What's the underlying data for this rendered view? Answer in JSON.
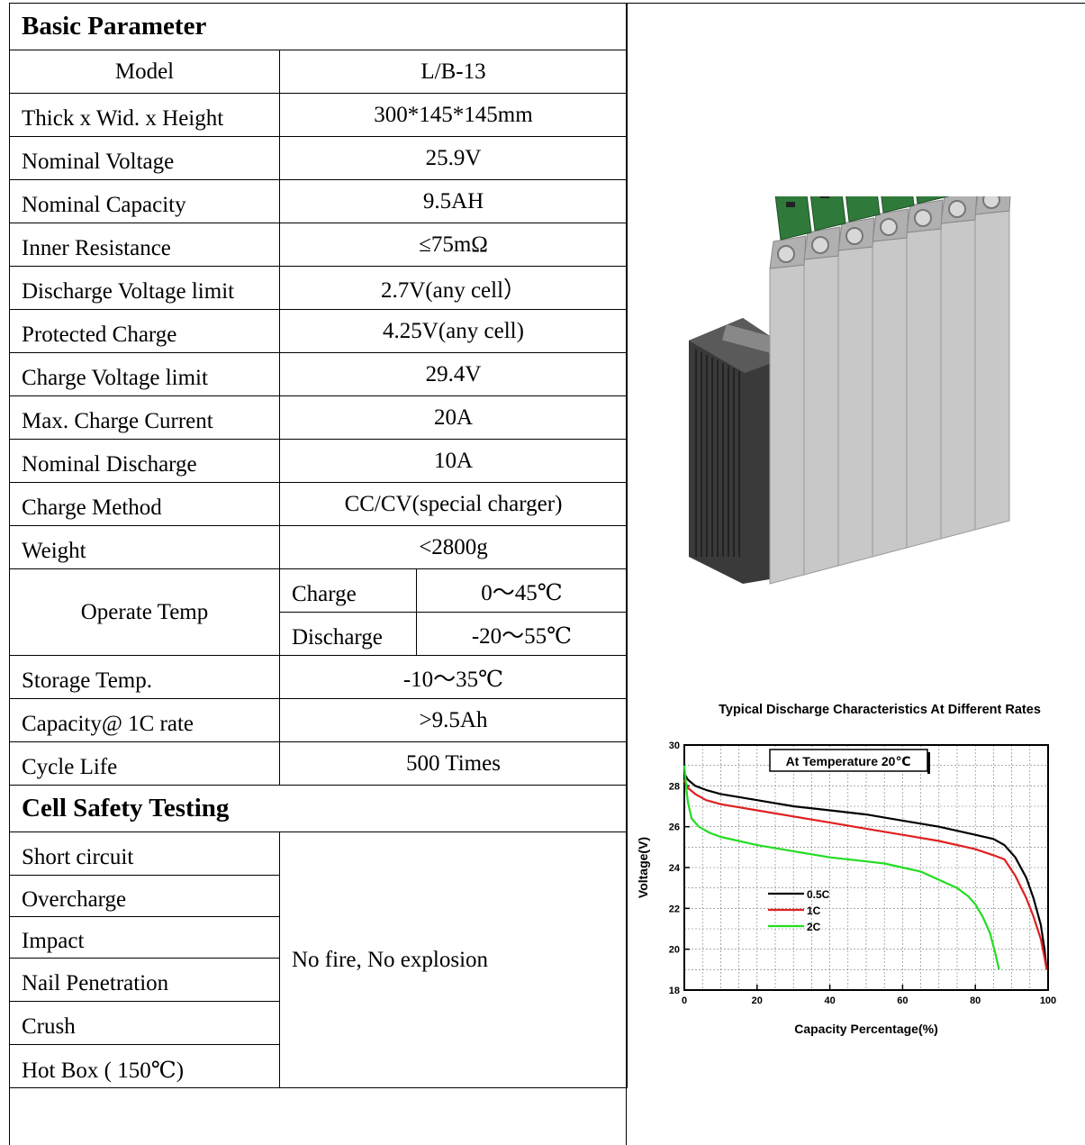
{
  "basic": {
    "title": "Basic Parameter",
    "rows": [
      {
        "label": "Model",
        "value": "L/B-13"
      },
      {
        "label": "Thick x Wid. x Height",
        "value": "300*145*145mm"
      },
      {
        "label": "Nominal Voltage",
        "value": "25.9V"
      },
      {
        "label": "Nominal Capacity",
        "value": "9.5AH"
      },
      {
        "label": "Inner Resistance",
        "value": "≤75mΩ"
      },
      {
        "label": "Discharge Voltage limit",
        "value": "2.7V(any cell）"
      },
      {
        "label": "Protected Charge",
        "value": "4.25V(any cell)"
      },
      {
        "label": "Charge Voltage limit",
        "value": "29.4V"
      },
      {
        "label": "Max. Charge Current",
        "value": "20A"
      },
      {
        "label": "Nominal Discharge",
        "value": "10A"
      },
      {
        "label": "Charge Method",
        "value": "CC/CV(special charger)"
      },
      {
        "label": "Weight",
        "value": "<2800g"
      }
    ],
    "operate_temp": {
      "label": "Operate Temp",
      "charge_label": "Charge",
      "charge_value": "0～45℃",
      "discharge_label": "Discharge",
      "discharge_value": "-20～55℃"
    },
    "rows2": [
      {
        "label": "Storage Temp.",
        "value": "-10～35℃"
      },
      {
        "label": "Capacity@ 1C rate",
        "value": ">9.5Ah"
      },
      {
        "label": "Cycle Life",
        "value": "500 Times"
      }
    ]
  },
  "safety": {
    "title": "Cell Safety Testing",
    "tests": [
      "Short circuit",
      "Overcharge",
      "Impact",
      "Nail Penetration",
      "Crush",
      "Hot Box ( 150℃)"
    ],
    "result": "No fire, No explosion"
  },
  "colors": {
    "battery_cell": "#c8c8c8",
    "bms_board": "#2f7a3a",
    "housing": "#3a3a3a"
  },
  "chart_data": {
    "type": "line",
    "title": "Typical Discharge Characteristics At Different Rates",
    "annotation": "At Temperature 20℃",
    "xlabel": "Capacity Percentage(%)",
    "ylabel": "Voltage(V)",
    "xlim": [
      0,
      100
    ],
    "ylim": [
      18,
      30
    ],
    "xticks": [
      0,
      20,
      40,
      60,
      80,
      100
    ],
    "yticks": [
      18,
      20,
      22,
      24,
      26,
      28,
      30
    ],
    "grid": true,
    "legend_position": "middle-left",
    "series": [
      {
        "name": "0.5C",
        "color": "#000000",
        "x": [
          0,
          1,
          3,
          6,
          10,
          20,
          30,
          40,
          50,
          60,
          70,
          80,
          85,
          88,
          91,
          94,
          96,
          98,
          99,
          99.6
        ],
        "y": [
          28.6,
          28.3,
          28.0,
          27.8,
          27.6,
          27.3,
          27.0,
          26.8,
          26.6,
          26.3,
          26.0,
          25.6,
          25.4,
          25.1,
          24.5,
          23.5,
          22.5,
          21.2,
          20.0,
          19.0
        ]
      },
      {
        "name": "1C",
        "color": "#e02020",
        "x": [
          0,
          1,
          3,
          6,
          10,
          20,
          30,
          40,
          50,
          60,
          70,
          80,
          85,
          88,
          91,
          94,
          96,
          98,
          99,
          99.6
        ],
        "y": [
          28.3,
          27.9,
          27.6,
          27.3,
          27.1,
          26.8,
          26.5,
          26.2,
          25.9,
          25.6,
          25.3,
          24.9,
          24.6,
          24.4,
          23.6,
          22.5,
          21.6,
          20.5,
          19.6,
          19.0
        ]
      },
      {
        "name": "2C",
        "color": "#22dd22",
        "x": [
          0,
          0.5,
          1,
          2,
          4,
          7,
          10,
          20,
          30,
          40,
          50,
          55,
          60,
          65,
          70,
          75,
          78,
          80,
          82,
          84,
          85.5,
          86.5
        ],
        "y": [
          29.0,
          28.0,
          27.2,
          26.4,
          26.0,
          25.7,
          25.5,
          25.1,
          24.8,
          24.5,
          24.3,
          24.2,
          24.0,
          23.8,
          23.4,
          23.0,
          22.6,
          22.2,
          21.6,
          20.8,
          19.8,
          19.0
        ]
      }
    ]
  }
}
